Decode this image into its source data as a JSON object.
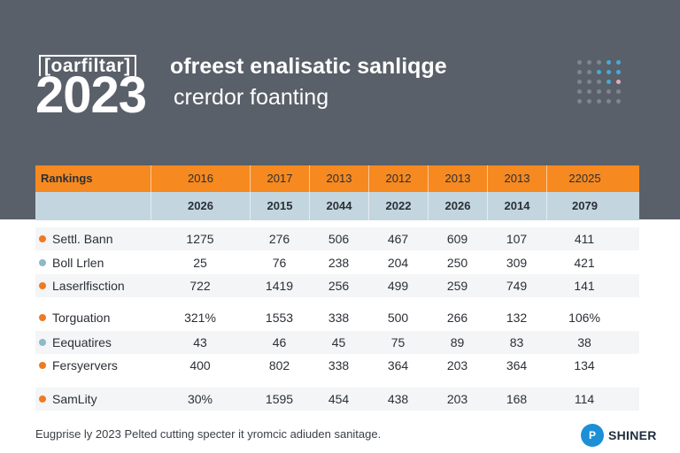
{
  "hero": {
    "badge": "[oarfiltar]",
    "year": "2023",
    "headline": "ofreest enalisatic sanliqge",
    "subline": "crerdor foanting",
    "dot_colors": [
      "#7f8690",
      "#4aa8d8",
      "#e6a8c4"
    ]
  },
  "chart_data": {
    "type": "table",
    "header_rows": [
      [
        "Rankings",
        "2016",
        "2017",
        "2013",
        "2012",
        "2013",
        "2013",
        "22025"
      ],
      [
        "",
        "2026",
        "2015",
        "2044",
        "2022",
        "2026",
        "2014",
        "2079"
      ]
    ],
    "rows": [
      {
        "label": "Settl. Bann",
        "bullet": "#f07a22",
        "values": [
          "1275",
          "276",
          "506",
          "467",
          "609",
          "107",
          "411"
        ]
      },
      {
        "label": "Boll Lrlen",
        "bullet": "#8fb8c8",
        "values": [
          "25",
          "76",
          "238",
          "204",
          "250",
          "309",
          "421"
        ]
      },
      {
        "label": "Laserlfisction",
        "bullet": "#f07a22",
        "values": [
          "722",
          "1419",
          "256",
          "499",
          "259",
          "749",
          "141"
        ]
      },
      {
        "label": "Torguation",
        "bullet": "#f07a22",
        "values": [
          "321%",
          "1553",
          "338",
          "500",
          "266",
          "132",
          "106%"
        ]
      },
      {
        "label": "Eequatires",
        "bullet": "#8fb8c8",
        "values": [
          "43",
          "46",
          "45",
          "75",
          "89",
          "83",
          "38"
        ]
      },
      {
        "label": "Fersyervers",
        "bullet": "#f07a22",
        "values": [
          "400",
          "802",
          "338",
          "364",
          "203",
          "364",
          "134"
        ]
      },
      {
        "label": "SamLity",
        "bullet": "#f07a22",
        "values": [
          "30%",
          "1595",
          "454",
          "438",
          "203",
          "168",
          "114"
        ]
      }
    ],
    "colors": {
      "header_orange": "#f6891f",
      "header_blue": "#c3d6df"
    }
  },
  "footer": {
    "note": "Eugprise ly 2023 Pelted cutting specter it yromcic adiuden sanitage.",
    "brand_mark": "P",
    "brand_name": "SHINER"
  }
}
